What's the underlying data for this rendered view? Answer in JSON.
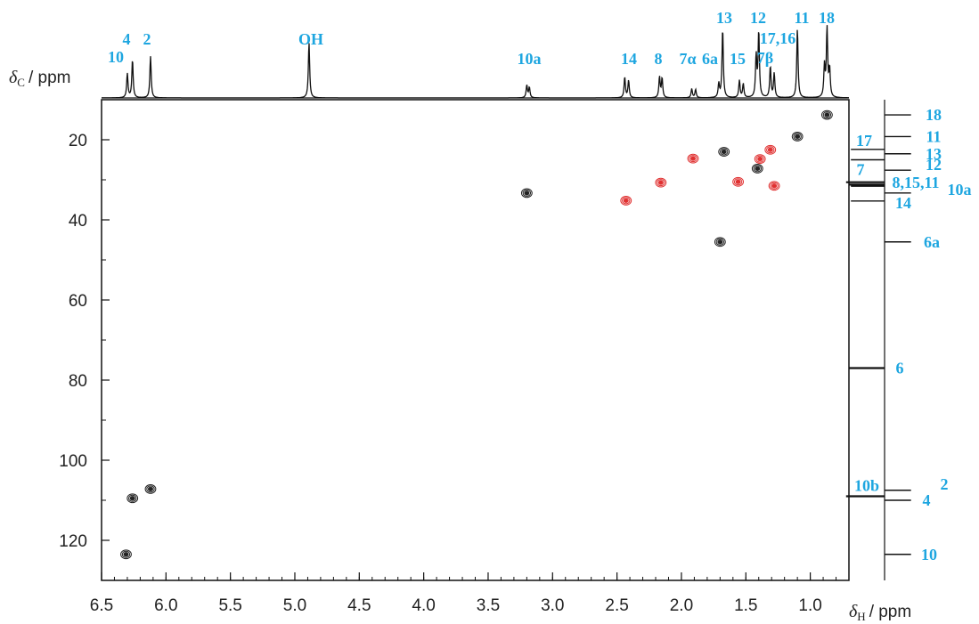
{
  "chart_data": {
    "type": "scatter",
    "subtype": "2D NMR HSQC correlation map",
    "x_axis": {
      "symbol": "δ",
      "subscript": "H",
      "unit": "/ ppm",
      "range": [
        6.5,
        0.7
      ],
      "reversed": true,
      "ticks": [
        "6.5",
        "6.0",
        "5.5",
        "5.0",
        "4.5",
        "4.0",
        "3.5",
        "3.0",
        "2.5",
        "2.0",
        "1.5",
        "1.0"
      ]
    },
    "y_axis": {
      "symbol": "δ",
      "subscript": "C",
      "unit": "/ ppm",
      "range": [
        10,
        130
      ],
      "reversed": true,
      "ticks": [
        "20",
        "40",
        "60",
        "80",
        "100",
        "120"
      ]
    },
    "grid": false,
    "colors": {
      "positive": "#222222",
      "negative": "#e03030",
      "label": "#1ea6e0"
    },
    "cross_peaks": [
      {
        "x": 6.31,
        "y": 123.5,
        "phase": "positive"
      },
      {
        "x": 6.26,
        "y": 109.5,
        "phase": "positive"
      },
      {
        "x": 6.12,
        "y": 107.2,
        "phase": "positive"
      },
      {
        "x": 3.2,
        "y": 33.3,
        "phase": "positive"
      },
      {
        "x": 2.43,
        "y": 35.2,
        "phase": "negative"
      },
      {
        "x": 2.16,
        "y": 30.7,
        "phase": "negative"
      },
      {
        "x": 1.91,
        "y": 24.7,
        "phase": "negative"
      },
      {
        "x": 1.7,
        "y": 45.5,
        "phase": "positive"
      },
      {
        "x": 1.67,
        "y": 23.0,
        "phase": "positive"
      },
      {
        "x": 1.56,
        "y": 30.5,
        "phase": "negative"
      },
      {
        "x": 1.41,
        "y": 27.2,
        "phase": "positive"
      },
      {
        "x": 1.39,
        "y": 24.8,
        "phase": "negative"
      },
      {
        "x": 1.31,
        "y": 22.5,
        "phase": "negative"
      },
      {
        "x": 1.28,
        "y": 31.5,
        "phase": "negative"
      },
      {
        "x": 1.1,
        "y": 19.2,
        "phase": "positive"
      },
      {
        "x": 0.87,
        "y": 13.8,
        "phase": "positive"
      }
    ],
    "proton_spectrum_peaks": [
      {
        "x": 6.3,
        "height": 0.35
      },
      {
        "x": 6.26,
        "height": 0.55
      },
      {
        "x": 6.12,
        "height": 0.6
      },
      {
        "x": 4.89,
        "height": 0.8
      },
      {
        "x": 3.2,
        "height": 0.18
      },
      {
        "x": 3.18,
        "height": 0.15
      },
      {
        "x": 2.44,
        "height": 0.3
      },
      {
        "x": 2.41,
        "height": 0.25
      },
      {
        "x": 2.17,
        "height": 0.3
      },
      {
        "x": 2.15,
        "height": 0.28
      },
      {
        "x": 1.92,
        "height": 0.13
      },
      {
        "x": 1.89,
        "height": 0.12
      },
      {
        "x": 1.71,
        "height": 0.2
      },
      {
        "x": 1.68,
        "height": 1.0
      },
      {
        "x": 1.55,
        "height": 0.25
      },
      {
        "x": 1.52,
        "height": 0.2
      },
      {
        "x": 1.42,
        "height": 0.6
      },
      {
        "x": 1.4,
        "height": 0.95
      },
      {
        "x": 1.31,
        "height": 0.45
      },
      {
        "x": 1.28,
        "height": 0.35
      },
      {
        "x": 1.1,
        "height": 1.0
      },
      {
        "x": 0.89,
        "height": 0.45
      },
      {
        "x": 0.87,
        "height": 1.0
      },
      {
        "x": 0.85,
        "height": 0.4
      }
    ],
    "proton_labels": [
      {
        "text": "10",
        "row": "lower"
      },
      {
        "text": "4",
        "row": "upper"
      },
      {
        "text": "2",
        "row": "upper"
      },
      {
        "text": "OH",
        "row": "upper"
      },
      {
        "text": "10a",
        "row": "lower"
      },
      {
        "text": "14",
        "row": "lower"
      },
      {
        "text": "8",
        "row": "lower"
      },
      {
        "text": "7α",
        "row": "lower"
      },
      {
        "text": "6a",
        "row": "lower"
      },
      {
        "text": "15",
        "row": "lower"
      },
      {
        "text": "13",
        "row": "top"
      },
      {
        "text": "12",
        "row": "top"
      },
      {
        "text": "17,16",
        "row": "upper"
      },
      {
        "text": "7β",
        "row": "lower"
      },
      {
        "text": "11",
        "row": "top"
      },
      {
        "text": "18",
        "row": "top"
      }
    ],
    "carbon_spectrum_peaks": [
      {
        "y": 13.8,
        "length": 0.55,
        "label": "18"
      },
      {
        "y": 19.2,
        "length": 0.55,
        "label": "11"
      },
      {
        "y": 22.4,
        "length": 0.7,
        "label": "17"
      },
      {
        "y": 23.5,
        "length": 0.55,
        "label": "13"
      },
      {
        "y": 25.0,
        "length": 0.7,
        "label": ""
      },
      {
        "y": 27.6,
        "length": 0.55,
        "label": "12"
      },
      {
        "y": 30.6,
        "length": 0.8,
        "label": "7"
      },
      {
        "y": 31.2,
        "length": 0.75,
        "label": ""
      },
      {
        "y": 31.6,
        "length": 0.7,
        "label": "8,15,11"
      },
      {
        "y": 33.3,
        "length": 0.55,
        "label": "10a"
      },
      {
        "y": 35.3,
        "length": 0.7,
        "label": "14"
      },
      {
        "y": 45.5,
        "length": 0.55,
        "label": "6a"
      },
      {
        "y": 77.0,
        "length": 0.75,
        "label": "6"
      },
      {
        "y": 107.5,
        "length": 0.55,
        "label": "2"
      },
      {
        "y": 109.0,
        "length": 0.8,
        "label": "10b"
      },
      {
        "y": 110.0,
        "length": 0.55,
        "label": "4"
      },
      {
        "y": 123.5,
        "length": 0.55,
        "label": "10"
      }
    ]
  }
}
